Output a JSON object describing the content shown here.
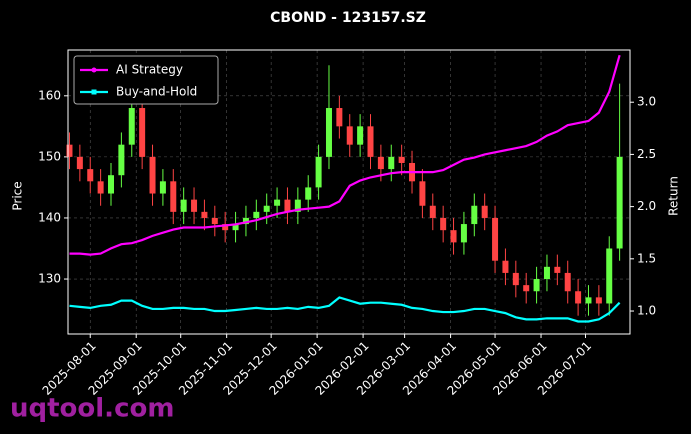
{
  "chart_data": {
    "type": "candlestick",
    "title": "CBOND - 123157.SZ",
    "ylabel": "Price",
    "y2label": "Return",
    "watermark": "uqtool.com",
    "x": [
      "2025-07-18",
      "2025-07-25",
      "2025-08-01",
      "2025-08-08",
      "2025-08-15",
      "2025-08-22",
      "2025-08-29",
      "2025-09-05",
      "2025-09-12",
      "2025-09-19",
      "2025-09-26",
      "2025-10-03",
      "2025-10-10",
      "2025-10-17",
      "2025-10-24",
      "2025-10-31",
      "2025-11-07",
      "2025-11-14",
      "2025-11-21",
      "2025-11-28",
      "2025-12-05",
      "2025-12-12",
      "2025-12-19",
      "2025-12-26",
      "2026-01-02",
      "2026-01-09",
      "2026-01-16",
      "2026-01-23",
      "2026-01-30",
      "2026-02-06",
      "2026-02-13",
      "2026-02-20",
      "2026-02-27",
      "2026-03-06",
      "2026-03-13",
      "2026-03-20",
      "2026-03-27",
      "2026-04-03",
      "2026-04-10",
      "2026-04-17",
      "2026-04-24",
      "2026-05-01",
      "2026-05-08",
      "2026-05-15",
      "2026-05-22",
      "2026-05-29",
      "2026-06-05",
      "2026-06-12",
      "2026-06-19",
      "2026-06-26",
      "2026-07-03",
      "2026-07-10",
      "2026-07-17",
      "2026-07-24"
    ],
    "open": [
      152,
      150,
      148,
      146,
      144,
      147,
      152,
      158,
      150,
      144,
      146,
      141,
      143,
      141,
      140,
      139,
      138,
      139,
      140,
      141,
      142,
      143,
      141,
      143,
      145,
      150,
      158,
      155,
      152,
      155,
      150,
      148,
      150,
      149,
      146,
      142,
      140,
      138,
      136,
      139,
      142,
      140,
      133,
      131,
      129,
      128,
      130,
      132,
      131,
      128,
      126,
      127,
      126,
      135
    ],
    "high": [
      154,
      152,
      150,
      148,
      149,
      154,
      163,
      160,
      152,
      148,
      148,
      145,
      145,
      143,
      142,
      141,
      141,
      142,
      143,
      144,
      145,
      145,
      145,
      147,
      152,
      165,
      160,
      157,
      157,
      157,
      152,
      152,
      152,
      151,
      148,
      144,
      142,
      140,
      141,
      144,
      144,
      142,
      135,
      133,
      131,
      132,
      134,
      134,
      133,
      130,
      129,
      129,
      137,
      162
    ],
    "low": [
      148,
      146,
      144,
      142,
      142,
      145,
      150,
      148,
      142,
      142,
      139,
      139,
      139,
      138,
      137,
      136,
      136,
      137,
      138,
      139,
      140,
      139,
      139,
      141,
      143,
      148,
      153,
      150,
      150,
      148,
      146,
      146,
      147,
      144,
      140,
      138,
      136,
      134,
      134,
      137,
      138,
      131,
      129,
      127,
      126,
      126,
      128,
      129,
      126,
      124,
      124,
      124,
      124,
      133
    ],
    "close": [
      150,
      148,
      146,
      144,
      147,
      152,
      158,
      150,
      144,
      146,
      141,
      143,
      141,
      140,
      139,
      138,
      139,
      140,
      141,
      142,
      143,
      141,
      143,
      145,
      150,
      158,
      155,
      152,
      155,
      150,
      148,
      150,
      149,
      146,
      142,
      140,
      138,
      136,
      139,
      142,
      140,
      133,
      131,
      129,
      128,
      130,
      132,
      131,
      128,
      126,
      127,
      126,
      135,
      150
    ],
    "up_color": "#66ff44",
    "down_color": "#ff4444",
    "series": [
      {
        "name": "AI Strategy",
        "color": "#ff00ff",
        "axis": "y2",
        "values": [
          1.55,
          1.55,
          1.54,
          1.55,
          1.6,
          1.64,
          1.65,
          1.68,
          1.72,
          1.75,
          1.78,
          1.8,
          1.8,
          1.8,
          1.81,
          1.82,
          1.83,
          1.85,
          1.87,
          1.9,
          1.93,
          1.95,
          1.97,
          1.98,
          1.99,
          2.0,
          2.05,
          2.2,
          2.25,
          2.28,
          2.3,
          2.32,
          2.33,
          2.33,
          2.33,
          2.33,
          2.35,
          2.4,
          2.45,
          2.47,
          2.5,
          2.52,
          2.54,
          2.56,
          2.58,
          2.62,
          2.68,
          2.72,
          2.78,
          2.8,
          2.82,
          2.9,
          3.1,
          3.45
        ]
      },
      {
        "name": "Buy-and-Hold",
        "color": "#00ffff",
        "axis": "y2",
        "values": [
          1.05,
          1.04,
          1.03,
          1.05,
          1.06,
          1.1,
          1.1,
          1.05,
          1.02,
          1.02,
          1.03,
          1.03,
          1.02,
          1.02,
          1.0,
          1.0,
          1.01,
          1.02,
          1.03,
          1.02,
          1.02,
          1.03,
          1.02,
          1.04,
          1.03,
          1.05,
          1.13,
          1.1,
          1.07,
          1.08,
          1.08,
          1.07,
          1.06,
          1.03,
          1.02,
          1.0,
          0.99,
          0.99,
          1.0,
          1.02,
          1.02,
          1.0,
          0.98,
          0.94,
          0.92,
          0.92,
          0.93,
          0.93,
          0.93,
          0.9,
          0.9,
          0.92,
          0.98,
          1.08
        ]
      }
    ],
    "xlim": [
      "2025-07-17",
      "2026-07-31"
    ],
    "xticks": [
      "2025-08-01",
      "2025-09-01",
      "2025-10-01",
      "2025-11-01",
      "2025-12-01",
      "2026-01-01",
      "2026-02-01",
      "2026-03-01",
      "2026-04-01",
      "2026-05-01",
      "2026-06-01",
      "2026-07-01"
    ],
    "ylim": [
      121,
      167.5
    ],
    "yticks": [
      130,
      140,
      150,
      160
    ],
    "y2lim": [
      0.78,
      3.5
    ],
    "y2ticks": [
      {
        "value": 1.0,
        "label": "1.0"
      },
      {
        "value": 1.5,
        "label": "1.5"
      },
      {
        "value": 2.0,
        "label": "2.0"
      },
      {
        "value": 2.5,
        "label": "2.5"
      },
      {
        "value": 3.0,
        "label": "3.0"
      }
    ],
    "grid": true,
    "legend": "upper left"
  }
}
